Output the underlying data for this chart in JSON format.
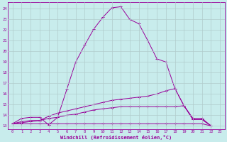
{
  "xlabel": "Windchill (Refroidissement éolien,°C)",
  "background_color": "#c8ecec",
  "grid_color": "#b0cccc",
  "line_color": "#990099",
  "xlim": [
    -0.5,
    23.5
  ],
  "ylim": [
    12.7,
    24.6
  ],
  "yticks": [
    13,
    14,
    15,
    16,
    17,
    18,
    19,
    20,
    21,
    22,
    23,
    24
  ],
  "xticks": [
    0,
    1,
    2,
    3,
    4,
    5,
    6,
    7,
    8,
    9,
    10,
    11,
    12,
    13,
    14,
    15,
    16,
    17,
    18,
    19,
    20,
    21,
    22,
    23
  ],
  "series": [
    {
      "x": [
        0,
        1,
        2,
        3,
        4,
        5,
        6,
        7,
        8,
        9,
        10,
        11,
        12,
        13,
        14,
        15,
        16,
        17,
        18,
        19,
        20,
        21,
        22,
        23
      ],
      "y": [
        13.2,
        13.7,
        13.8,
        13.8,
        13.1,
        13.8,
        16.4,
        19.0,
        20.6,
        22.1,
        23.2,
        24.1,
        24.2,
        23.0,
        22.6,
        21.0,
        19.3,
        19.0,
        16.5,
        14.9,
        13.7,
        13.7,
        13.0,
        null
      ]
    },
    {
      "x": [
        0,
        1,
        2,
        3,
        4,
        5,
        6,
        7,
        8,
        9,
        10,
        11,
        12,
        13,
        14,
        15,
        16,
        17,
        18,
        19,
        20,
        21,
        22,
        23
      ],
      "y": [
        13.2,
        13.4,
        13.5,
        13.5,
        13.9,
        14.2,
        14.4,
        14.6,
        14.8,
        15.0,
        15.2,
        15.4,
        15.5,
        15.6,
        15.7,
        15.8,
        16.0,
        16.3,
        16.5,
        14.9,
        13.6,
        13.6,
        13.0,
        null
      ]
    },
    {
      "x": [
        0,
        1,
        2,
        3,
        4,
        5,
        6,
        7,
        8,
        9,
        10,
        11,
        12,
        13,
        14,
        15,
        16,
        17,
        18,
        19,
        20,
        21,
        22,
        23
      ],
      "y": [
        13.2,
        13.3,
        13.4,
        13.5,
        13.7,
        13.8,
        14.0,
        14.1,
        14.3,
        14.5,
        14.6,
        14.7,
        14.8,
        14.8,
        14.8,
        14.8,
        14.8,
        14.8,
        14.8,
        14.9,
        13.6,
        13.6,
        13.0,
        null
      ]
    },
    {
      "x": [
        0,
        1,
        2,
        3,
        4,
        5,
        6,
        7,
        8,
        9,
        10,
        11,
        12,
        13,
        14,
        15,
        16,
        17,
        18,
        19,
        20,
        21,
        22,
        23
      ],
      "y": [
        13.2,
        13.2,
        13.2,
        13.2,
        13.2,
        13.2,
        13.2,
        13.2,
        13.2,
        13.2,
        13.2,
        13.2,
        13.2,
        13.2,
        13.2,
        13.2,
        13.2,
        13.2,
        13.2,
        13.2,
        13.2,
        13.2,
        13.0,
        null
      ]
    }
  ]
}
